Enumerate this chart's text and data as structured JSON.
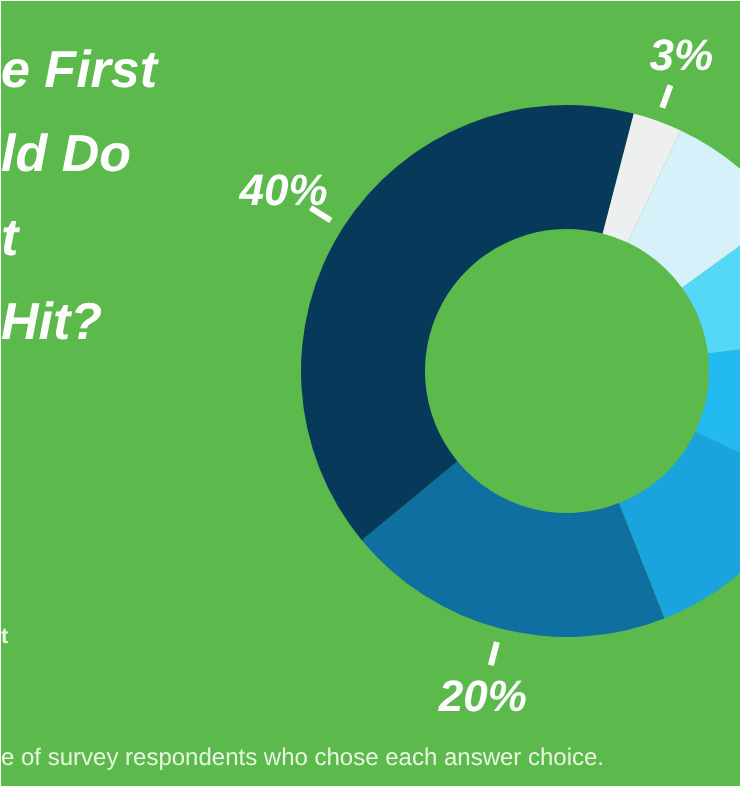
{
  "chart_data": {
    "type": "donut",
    "title": "e First\nld Do\nt\nHit?",
    "categories": [
      null,
      null,
      null,
      null,
      null,
      null,
      null
    ],
    "values": [
      3,
      8,
      8,
      9,
      12,
      20,
      40
    ],
    "colors": [
      "#eef0f0",
      "#d6f1f9",
      "#55d8f8",
      "#22baf1",
      "#1aa3dc",
      "#0f6fa0",
      "#073a5a"
    ],
    "value_labels": [
      "3%",
      null,
      null,
      null,
      null,
      "20%",
      "40%"
    ],
    "annotations": [
      "t",
      "e of survey respondents who chose each answer choice."
    ]
  }
}
